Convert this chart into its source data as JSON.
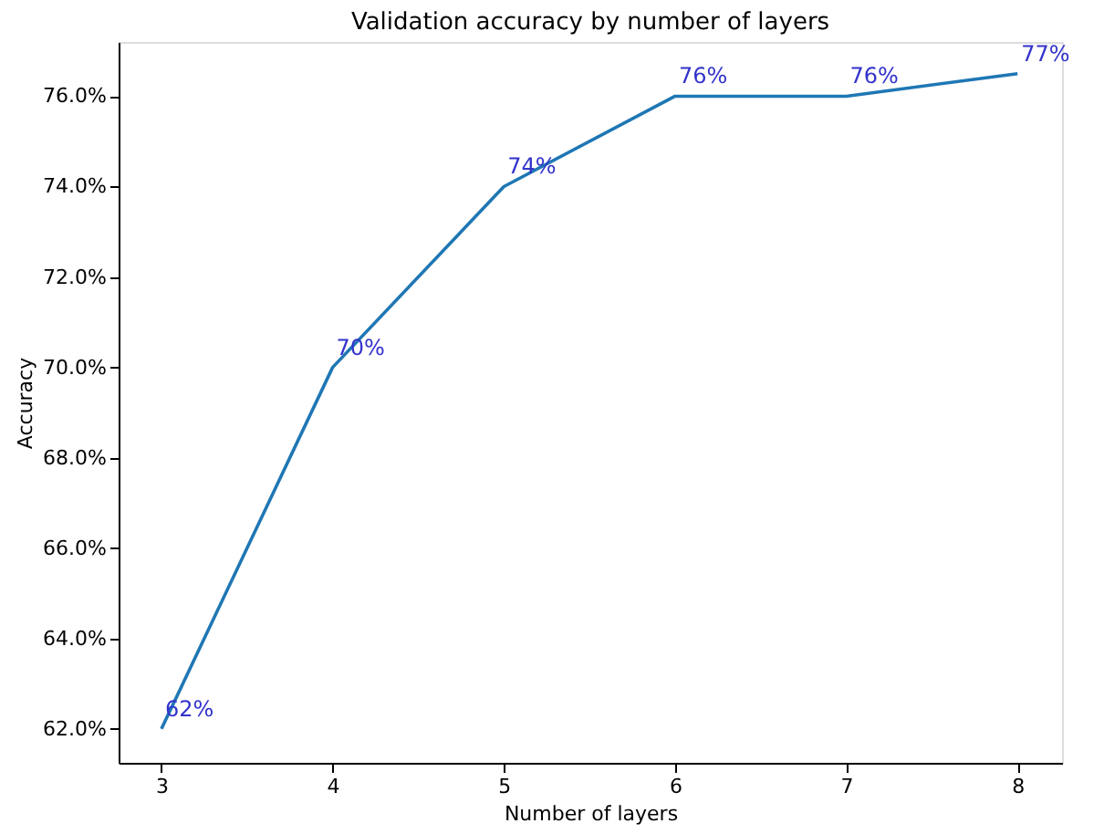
{
  "chart_data": {
    "type": "line",
    "title": "Validation accuracy by number of layers",
    "xlabel": "Number of layers",
    "ylabel": "Accuracy",
    "x": [
      3,
      4,
      5,
      6,
      7,
      8
    ],
    "series": [
      {
        "color": "#1f77b4",
        "values": [
          62.0,
          70.0,
          74.0,
          76.0,
          76.0,
          76.5
        ],
        "value_labels": [
          "62%",
          "70%",
          "74%",
          "76%",
          "76%",
          "77%"
        ]
      }
    ],
    "xlim": [
      2.75,
      8.26
    ],
    "ylim": [
      61.25,
      77.2
    ],
    "xticks": [
      3,
      4,
      5,
      6,
      7,
      8
    ],
    "yticks": [
      {
        "value": 62,
        "label": "62.0%"
      },
      {
        "value": 64,
        "label": "64.0%"
      },
      {
        "value": 66,
        "label": "66.0%"
      },
      {
        "value": 68,
        "label": "68.0%"
      },
      {
        "value": 70,
        "label": "70.0%"
      },
      {
        "value": 72,
        "label": "72.0%"
      },
      {
        "value": 74,
        "label": "74.0%"
      },
      {
        "value": 76,
        "label": "76.0%"
      }
    ],
    "grid": false,
    "marker": "none",
    "line_style": "solid"
  }
}
